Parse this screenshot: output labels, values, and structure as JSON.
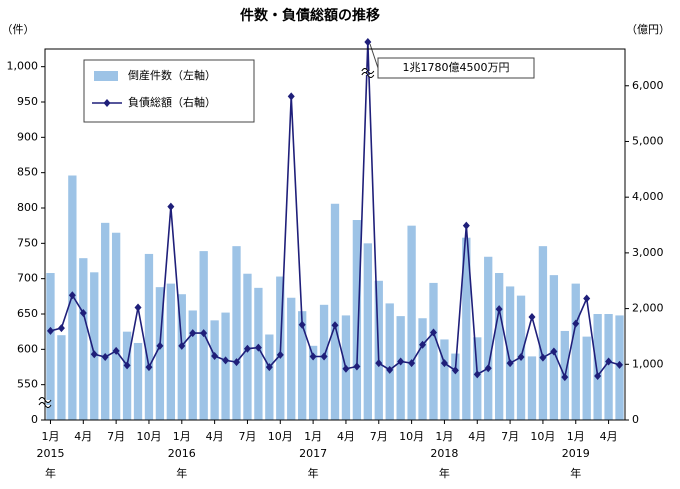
{
  "chart_data": {
    "type": "bar-line",
    "title": "件数・負債総額の推移",
    "y_unit": "（件）",
    "y2_unit": "（億円）",
    "categories": [
      "1月",
      null,
      null,
      "4月",
      null,
      null,
      "7月",
      null,
      null,
      "10月",
      null,
      null,
      "1月",
      null,
      null,
      "4月",
      null,
      null,
      "7月",
      null,
      null,
      "10月",
      null,
      null,
      "1月",
      null,
      null,
      "4月",
      null,
      null,
      "7月",
      null,
      null,
      "10月",
      null,
      null,
      "1月",
      null,
      null,
      "4月",
      null,
      null,
      "7月",
      null,
      null,
      "10月",
      null,
      null,
      "1月",
      null,
      null,
      "4月",
      null
    ],
    "year_labels": [
      "2015",
      null,
      null,
      null,
      null,
      null,
      null,
      null,
      null,
      null,
      null,
      null,
      "2016",
      null,
      null,
      null,
      null,
      null,
      null,
      null,
      null,
      null,
      null,
      null,
      "2017",
      null,
      null,
      null,
      null,
      null,
      null,
      null,
      null,
      null,
      null,
      null,
      "2018",
      null,
      null,
      null,
      null,
      null,
      null,
      null,
      null,
      null,
      null,
      null,
      "2019",
      null,
      null,
      null,
      null
    ],
    "year_suffix": "年",
    "series": [
      {
        "name": "倒産件数（左軸）",
        "kind": "bar",
        "color": "#9dc3e6",
        "values": [
          708,
          620,
          846,
          729,
          709,
          779,
          765,
          625,
          609,
          735,
          688,
          693,
          678,
          655,
          739,
          641,
          652,
          746,
          707,
          687,
          621,
          703,
          673,
          654,
          605,
          663,
          806,
          648,
          783,
          750,
          697,
          665,
          647,
          775,
          644,
          694,
          614,
          594,
          758,
          617,
          731,
          708,
          689,
          676,
          590,
          746,
          705,
          626,
          693,
          618,
          650,
          650,
          648
        ]
      },
      {
        "name": "負債総額（右軸）",
        "kind": "line",
        "axis": "y2",
        "color": "#1f1f7a",
        "values": [
          1600,
          1650,
          2240,
          1920,
          1180,
          1130,
          1240,
          980,
          2020,
          950,
          1330,
          3830,
          1330,
          1560,
          1560,
          1150,
          1070,
          1040,
          1280,
          1300,
          950,
          1170,
          5810,
          1710,
          1140,
          1140,
          1700,
          920,
          960,
          11780.45,
          1020,
          900,
          1050,
          1020,
          1350,
          1570,
          1020,
          890,
          3490,
          820,
          930,
          1990,
          1020,
          1130,
          1850,
          1120,
          1230,
          770,
          1730,
          2180,
          790,
          1050,
          990
        ],
        "value_labels": [
          null,
          null,
          null,
          null,
          null,
          null,
          null,
          null,
          null,
          null,
          null,
          null,
          null,
          null,
          null,
          null,
          null,
          null,
          null,
          null,
          null,
          null,
          null,
          null,
          null,
          null,
          null,
          null,
          null,
          "1兆1780億4500万円",
          null,
          null,
          null,
          null,
          null,
          null,
          null,
          null,
          null,
          null,
          null,
          null,
          null,
          null,
          null,
          null,
          null,
          null,
          null,
          null,
          null,
          null,
          null
        ]
      }
    ],
    "ylim": [
      500,
      1025
    ],
    "axis_break": true,
    "yticks": [
      0,
      550,
      600,
      650,
      700,
      750,
      800,
      850,
      900,
      950,
      {
        "value": 1000,
        "label": "1,000"
      }
    ],
    "y2lim": [
      0,
      6660
    ],
    "y2ticks": [
      0,
      {
        "value": 1000,
        "label": "1,000"
      },
      {
        "value": 2000,
        "label": "2,000"
      },
      {
        "value": 3000,
        "label": "3,000"
      },
      {
        "value": 4000,
        "label": "4,000"
      },
      {
        "value": 5000,
        "label": "5,000"
      },
      {
        "value": 6000,
        "label": "6,000"
      }
    ],
    "grid": false,
    "legend": "upper-left"
  }
}
